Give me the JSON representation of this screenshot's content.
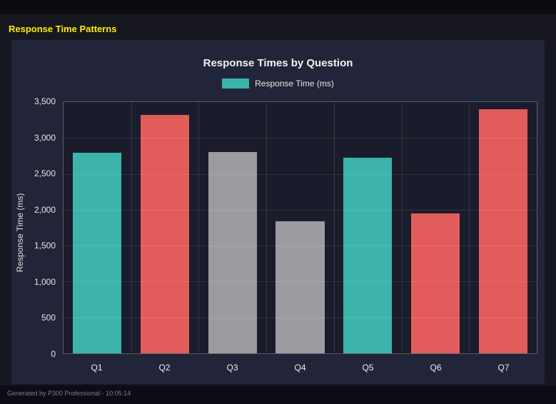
{
  "page": {
    "title": "Response Time Patterns",
    "footer": "Generated by P300 Professional - 10:05:14"
  },
  "chart": {
    "title": "Response Times by Question",
    "legend_label": "Response Time (ms)",
    "ylabel": "Response Time (ms)"
  },
  "colors": {
    "teal": "#3cb4ab",
    "red": "#e25c5c",
    "gray": "#9b9ba1",
    "panel_bg": "#222539",
    "page_bg": "#17171f",
    "title_yellow": "#ffee00"
  },
  "chart_data": {
    "type": "bar",
    "title": "Response Times by Question",
    "categories": [
      "Q1",
      "Q2",
      "Q3",
      "Q4",
      "Q5",
      "Q6",
      "Q7"
    ],
    "values": [
      2790,
      3320,
      2800,
      1840,
      2720,
      1950,
      3400
    ],
    "bar_colors": [
      "#3cb4ab",
      "#e25c5c",
      "#9b9ba1",
      "#9b9ba1",
      "#3cb4ab",
      "#e25c5c",
      "#e25c5c"
    ],
    "xlabel": "",
    "ylabel": "Response Time (ms)",
    "ylim": [
      0,
      3500
    ],
    "yticks": [
      0,
      500,
      1000,
      1500,
      2000,
      2500,
      3000,
      3500
    ],
    "legend": [
      "Response Time (ms)"
    ],
    "legend_position": "top",
    "grid": true
  }
}
